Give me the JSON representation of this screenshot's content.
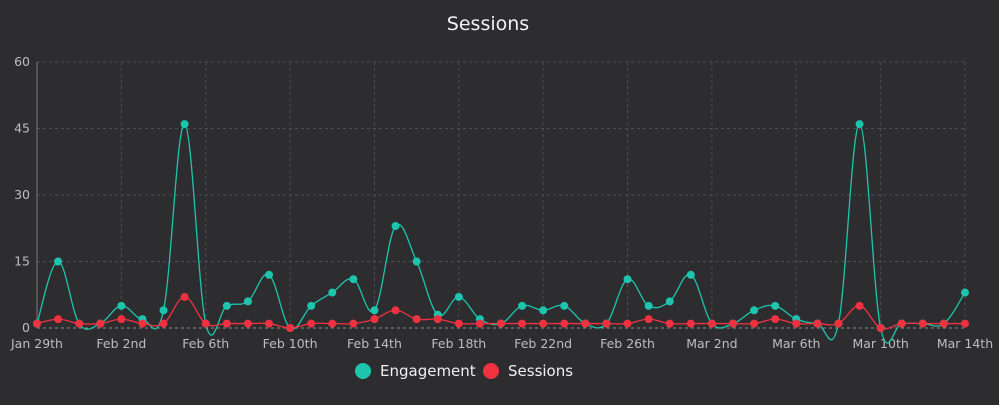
{
  "chart_data": {
    "type": "line",
    "title": "Sessions",
    "xlabel": "",
    "ylabel": "",
    "ylim": [
      0,
      60
    ],
    "yticks": [
      "0",
      "15",
      "30",
      "45",
      "60"
    ],
    "x": [
      "Jan 29th",
      "Jan 30th",
      "Jan 31st",
      "Feb 1st",
      "Feb 2nd",
      "Feb 3rd",
      "Feb 4th",
      "Feb 5th",
      "Feb 6th",
      "Feb 7th",
      "Feb 8th",
      "Feb 9th",
      "Feb 10th",
      "Feb 11th",
      "Feb 12th",
      "Feb 13th",
      "Feb 14th",
      "Feb 15th",
      "Feb 16th",
      "Feb 17th",
      "Feb 18th",
      "Feb 19th",
      "Feb 20th",
      "Feb 21st",
      "Feb 22nd",
      "Feb 23rd",
      "Feb 24th",
      "Feb 25th",
      "Feb 26th",
      "Feb 27th",
      "Feb 28th",
      "Mar 1st",
      "Mar 2nd",
      "Mar 3rd",
      "Mar 4th",
      "Mar 5th",
      "Mar 6th",
      "Mar 7th",
      "Mar 8th",
      "Mar 9th",
      "Mar 10th",
      "Mar 11th",
      "Mar 12th",
      "Mar 13th",
      "Mar 14th"
    ],
    "xtick_labels": [
      "Jan 29th",
      "Feb 2nd",
      "Feb 6th",
      "Feb 10th",
      "Feb 14th",
      "Feb 18th",
      "Feb 22nd",
      "Feb 26th",
      "Mar 2nd",
      "Mar 6th",
      "Mar 10th",
      "Mar 14th"
    ],
    "grid": true,
    "legend_position": "bottom",
    "series": [
      {
        "name": "Engagement",
        "color": "#1ec4ad",
        "values": [
          1,
          15,
          1,
          1,
          5,
          2,
          4,
          46,
          1,
          5,
          6,
          12,
          0,
          5,
          8,
          11,
          4,
          23,
          15,
          3,
          7,
          2,
          1,
          5,
          4,
          5,
          1,
          1,
          11,
          5,
          6,
          12,
          1,
          1,
          4,
          5,
          2,
          1,
          1,
          46,
          0,
          1,
          1,
          1,
          8
        ]
      },
      {
        "name": "Sessions",
        "color": "#f0313f",
        "values": [
          1,
          2,
          1,
          1,
          2,
          1,
          1,
          7,
          1,
          1,
          1,
          1,
          0,
          1,
          1,
          1,
          2,
          4,
          2,
          2,
          1,
          1,
          1,
          1,
          1,
          1,
          1,
          1,
          1,
          2,
          1,
          1,
          1,
          1,
          1,
          2,
          1,
          1,
          1,
          5,
          0,
          1,
          1,
          1,
          1
        ]
      }
    ]
  }
}
